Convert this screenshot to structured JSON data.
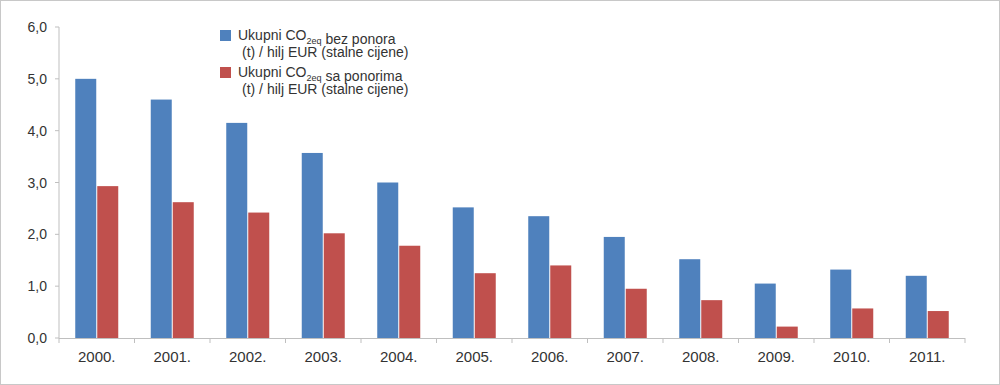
{
  "chart_data": {
    "type": "bar",
    "categories": [
      "2000.",
      "2001.",
      "2002.",
      "2003.",
      "2004.",
      "2005.",
      "2006.",
      "2007.",
      "2008.",
      "2009.",
      "2010.",
      "2011."
    ],
    "series": [
      {
        "name": "Ukupni CO2eq bez ponora (t) / hilj EUR (stalne cijene)",
        "color": "#4f81bd",
        "values": [
          5.0,
          4.6,
          4.15,
          3.57,
          3.0,
          2.52,
          2.35,
          1.95,
          1.52,
          1.05,
          1.32,
          1.2
        ]
      },
      {
        "name": "Ukupni CO2eq sa ponorima (t) / hilj EUR (stalne cijene)",
        "color": "#c0504d",
        "values": [
          2.93,
          2.62,
          2.42,
          2.02,
          1.78,
          1.25,
          1.4,
          0.95,
          0.73,
          0.22,
          0.57,
          0.52
        ]
      }
    ],
    "ylim": [
      0,
      6
    ],
    "yticks": [
      {
        "value": 0,
        "label": "0,0"
      },
      {
        "value": 1,
        "label": "1,0"
      },
      {
        "value": 2,
        "label": "2,0"
      },
      {
        "value": 3,
        "label": "3,0"
      },
      {
        "value": 4,
        "label": "4,0"
      },
      {
        "value": 5,
        "label": "5,0"
      },
      {
        "value": 6,
        "label": "6,0"
      }
    ],
    "grid": false,
    "legend": "top-left"
  }
}
